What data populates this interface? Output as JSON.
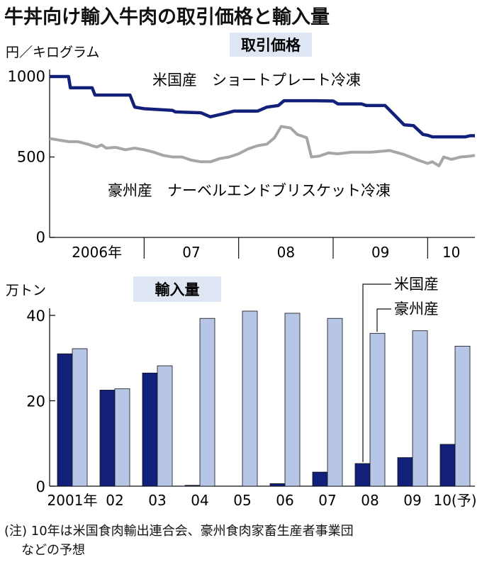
{
  "title": "牛丼向け輸入牛肉の取引価格と輸入量",
  "note_line1": "(注) 10年は米国食肉輸出連合会、豪州食肉家畜生産者事業団",
  "note_line2": "などの予想",
  "colors": {
    "us": "#13207a",
    "aus_line": "#a6a6a6",
    "aus_bar": "#b7c6e6",
    "badge": "#dfe7f5"
  },
  "chart_data": [
    {
      "type": "line",
      "panel_label": "取引価格",
      "ylabel": "円／キログラム",
      "ylim": [
        0,
        1000
      ],
      "yticks": [
        0,
        500,
        1000
      ],
      "xlim": [
        2006.0,
        2010.5
      ],
      "x_tick_labels": [
        {
          "pos": 2006.5,
          "label": "2006年"
        },
        {
          "pos": 2007.5,
          "label": "07"
        },
        {
          "pos": 2008.5,
          "label": "08"
        },
        {
          "pos": 2009.5,
          "label": "09"
        },
        {
          "pos": 2010.25,
          "label": "10"
        }
      ],
      "x_dividers": [
        2007.0,
        2008.0,
        2009.0,
        2010.0
      ],
      "series": [
        {
          "name": "米国産　ショートプレート冷凍",
          "color": "#13207a",
          "points": [
            [
              2006.0,
              1000
            ],
            [
              2006.2,
              1000
            ],
            [
              2006.22,
              930
            ],
            [
              2006.45,
              930
            ],
            [
              2006.48,
              885
            ],
            [
              2006.85,
              885
            ],
            [
              2006.9,
              810
            ],
            [
              2007.0,
              800
            ],
            [
              2007.3,
              790
            ],
            [
              2007.33,
              780
            ],
            [
              2007.6,
              775
            ],
            [
              2007.7,
              750
            ],
            [
              2007.85,
              770
            ],
            [
              2007.95,
              785
            ],
            [
              2008.2,
              785
            ],
            [
              2008.3,
              810
            ],
            [
              2008.42,
              820
            ],
            [
              2008.48,
              850
            ],
            [
              2008.8,
              850
            ],
            [
              2009.0,
              848
            ],
            [
              2009.05,
              830
            ],
            [
              2009.3,
              830
            ],
            [
              2009.35,
              820
            ],
            [
              2009.55,
              820
            ],
            [
              2009.65,
              760
            ],
            [
              2009.75,
              700
            ],
            [
              2009.85,
              695
            ],
            [
              2009.95,
              640
            ],
            [
              2010.0,
              635
            ],
            [
              2010.05,
              625
            ],
            [
              2010.4,
              625
            ],
            [
              2010.45,
              632
            ],
            [
              2010.5,
              632
            ]
          ]
        },
        {
          "name": "豪州産　ナーベルエンドブリスケット冷凍",
          "color": "#a6a6a6",
          "points": [
            [
              2006.0,
              615
            ],
            [
              2006.1,
              605
            ],
            [
              2006.2,
              595
            ],
            [
              2006.3,
              595
            ],
            [
              2006.4,
              580
            ],
            [
              2006.45,
              570
            ],
            [
              2006.5,
              562
            ],
            [
              2006.55,
              575
            ],
            [
              2006.6,
              555
            ],
            [
              2006.7,
              560
            ],
            [
              2006.8,
              545
            ],
            [
              2006.9,
              555
            ],
            [
              2007.0,
              545
            ],
            [
              2007.1,
              530
            ],
            [
              2007.2,
              510
            ],
            [
              2007.3,
              500
            ],
            [
              2007.4,
              500
            ],
            [
              2007.5,
              480
            ],
            [
              2007.6,
              470
            ],
            [
              2007.7,
              470
            ],
            [
              2007.8,
              490
            ],
            [
              2007.9,
              500
            ],
            [
              2008.0,
              520
            ],
            [
              2008.1,
              550
            ],
            [
              2008.2,
              570
            ],
            [
              2008.3,
              580
            ],
            [
              2008.38,
              620
            ],
            [
              2008.45,
              690
            ],
            [
              2008.55,
              680
            ],
            [
              2008.62,
              640
            ],
            [
              2008.72,
              620
            ],
            [
              2008.77,
              500
            ],
            [
              2008.85,
              505
            ],
            [
              2008.95,
              525
            ],
            [
              2009.05,
              520
            ],
            [
              2009.2,
              530
            ],
            [
              2009.4,
              530
            ],
            [
              2009.6,
              540
            ],
            [
              2009.75,
              515
            ],
            [
              2009.9,
              480
            ],
            [
              2010.0,
              460
            ],
            [
              2010.05,
              470
            ],
            [
              2010.12,
              445
            ],
            [
              2010.17,
              500
            ],
            [
              2010.25,
              485
            ],
            [
              2010.35,
              500
            ],
            [
              2010.45,
              505
            ],
            [
              2010.5,
              510
            ]
          ]
        }
      ]
    },
    {
      "type": "bar",
      "panel_label": "輸入量",
      "ylabel": "万トン",
      "ylim": [
        0,
        40
      ],
      "yticks": [
        0,
        20,
        40
      ],
      "categories": [
        "2001年",
        "02",
        "03",
        "04",
        "05",
        "06",
        "07",
        "08",
        "09",
        "10(予)"
      ],
      "series": [
        {
          "name": "米国産",
          "color": "#13207a",
          "values": [
            31,
            22.5,
            26.5,
            0.2,
            0,
            0.6,
            3.3,
            5.3,
            6.7,
            9.8
          ]
        },
        {
          "name": "豪州産",
          "color": "#b7c6e6",
          "values": [
            32.2,
            22.8,
            28.2,
            39.3,
            41,
            40.5,
            39.3,
            35.8,
            36.4,
            32.8
          ]
        }
      ]
    }
  ]
}
